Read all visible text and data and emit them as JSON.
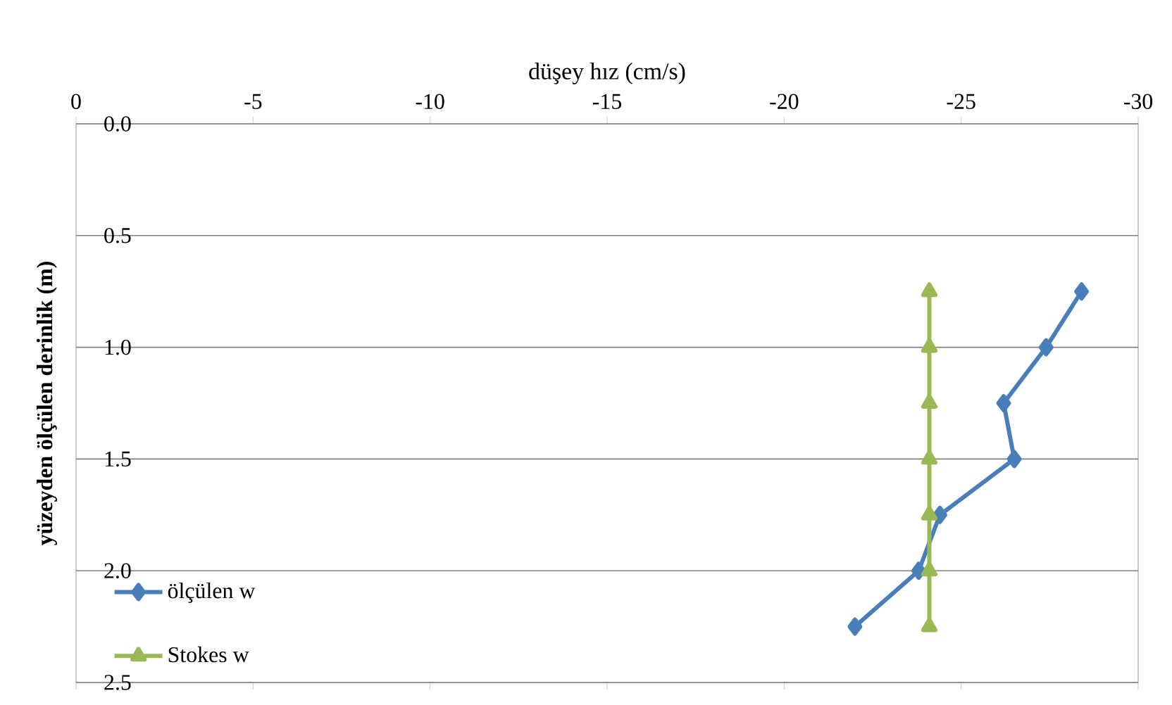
{
  "chart_data": {
    "type": "line",
    "xlabel": "düşey hız (cm/s)",
    "ylabel": "yüzeyden ölçülen derinlik (m)",
    "xlim": [
      0,
      -30
    ],
    "xticks": [
      0,
      -5,
      -10,
      -15,
      -20,
      -25,
      -30
    ],
    "ylim": [
      2.5,
      0
    ],
    "yticks": [
      {
        "value": 0,
        "label": "0.0"
      },
      {
        "value": 0.5,
        "label": "0.5"
      },
      {
        "value": 1,
        "label": "1.0"
      },
      {
        "value": 1.5,
        "label": "1.5"
      },
      {
        "value": 2,
        "label": "2.0"
      },
      {
        "value": 2.5,
        "label": "2.5"
      }
    ],
    "grid": "y",
    "legend": "bottom left",
    "line_style": "solid",
    "series": [
      {
        "name": "ölçülen w",
        "color": "#4a7ebb",
        "marker": "diamond",
        "x": [
          -28.4,
          -27.4,
          -26.2,
          -26.5,
          -24.4,
          -23.8,
          -22.0
        ],
        "values": [
          0.75,
          1.0,
          1.25,
          1.5,
          1.75,
          2.0,
          2.25
        ]
      },
      {
        "name": "Stokes w",
        "color": "#98b954",
        "marker": "triangle",
        "x": [
          -24.1,
          -24.1,
          -24.1,
          -24.1,
          -24.1,
          -24.1,
          -24.1
        ],
        "values": [
          0.75,
          1.0,
          1.25,
          1.5,
          1.75,
          2.0,
          2.25
        ]
      }
    ]
  }
}
